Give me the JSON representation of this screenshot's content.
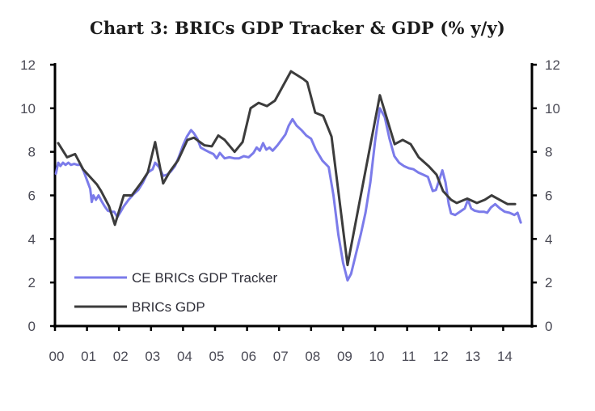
{
  "chart_data": {
    "type": "line",
    "title": "Chart 3: BRICs GDP Tracker & GDP (% y/y)",
    "xlabel": "",
    "ylabel": "",
    "xlim": [
      2000,
      2014.9
    ],
    "ylim": [
      0,
      12
    ],
    "y_ticks": [
      "0",
      "2",
      "4",
      "6",
      "8",
      "10",
      "12"
    ],
    "y_ticks_right": [
      "0",
      "2",
      "4",
      "6",
      "8",
      "10",
      "12"
    ],
    "x_ticks": [
      "00",
      "01",
      "02",
      "03",
      "04",
      "05",
      "06",
      "07",
      "08",
      "09",
      "10",
      "11",
      "12",
      "13",
      "14"
    ],
    "grid": false,
    "legend_position": "bottom-left",
    "series": [
      {
        "name": "CE BRICs GDP Tracker",
        "color": "#7b7bea",
        "x": [
          2000.03,
          2000.1,
          2000.17,
          2000.25,
          2000.33,
          2000.42,
          2000.5,
          2000.6,
          2000.7,
          2000.8,
          2000.9,
          2001.0,
          2001.1,
          2001.15,
          2001.2,
          2001.28,
          2001.36,
          2001.45,
          2001.55,
          2001.65,
          2001.75,
          2001.85,
          2001.95,
          2002.05,
          2002.15,
          2002.3,
          2002.45,
          2002.6,
          2002.75,
          2002.9,
          2003.05,
          2003.13,
          2003.25,
          2003.38,
          2003.5,
          2003.62,
          2003.75,
          2003.88,
          2004.0,
          2004.12,
          2004.25,
          2004.34,
          2004.45,
          2004.55,
          2004.67,
          2004.8,
          2004.95,
          2005.05,
          2005.15,
          2005.3,
          2005.45,
          2005.6,
          2005.75,
          2005.9,
          2006.05,
          2006.2,
          2006.3,
          2006.4,
          2006.5,
          2006.6,
          2006.7,
          2006.8,
          2006.95,
          2007.1,
          2007.2,
          2007.3,
          2007.42,
          2007.55,
          2007.7,
          2007.85,
          2008.0,
          2008.15,
          2008.35,
          2008.55,
          2008.7,
          2008.85,
          2009.0,
          2009.14,
          2009.25,
          2009.4,
          2009.55,
          2009.7,
          2009.85,
          2010.0,
          2010.15,
          2010.3,
          2010.45,
          2010.6,
          2010.75,
          2010.9,
          2011.05,
          2011.2,
          2011.35,
          2011.5,
          2011.65,
          2011.8,
          2011.9,
          2012.0,
          2012.1,
          2012.2,
          2012.3,
          2012.37,
          2012.5,
          2012.65,
          2012.8,
          2012.9,
          2013.0,
          2013.1,
          2013.25,
          2013.4,
          2013.5,
          2013.62,
          2013.75,
          2013.9,
          2014.05,
          2014.2,
          2014.35,
          2014.45,
          2014.55
        ],
        "values": [
          7.0,
          7.5,
          7.35,
          7.5,
          7.4,
          7.5,
          7.4,
          7.45,
          7.4,
          7.4,
          7.1,
          6.7,
          6.3,
          5.7,
          6.0,
          5.8,
          6.0,
          5.75,
          5.5,
          5.3,
          5.25,
          5.25,
          5.0,
          5.25,
          5.5,
          5.8,
          6.05,
          6.25,
          6.6,
          7.05,
          7.2,
          7.5,
          7.3,
          6.9,
          6.95,
          7.1,
          7.35,
          7.8,
          8.3,
          8.7,
          9.0,
          8.85,
          8.6,
          8.2,
          8.1,
          8.0,
          7.9,
          7.7,
          7.95,
          7.7,
          7.75,
          7.7,
          7.7,
          7.8,
          7.75,
          7.95,
          8.2,
          8.05,
          8.4,
          8.1,
          8.2,
          8.05,
          8.3,
          8.6,
          8.8,
          9.2,
          9.5,
          9.2,
          9.0,
          8.75,
          8.6,
          8.1,
          7.6,
          7.3,
          6.0,
          4.2,
          2.9,
          2.1,
          2.4,
          3.3,
          4.2,
          5.2,
          6.6,
          8.5,
          10.0,
          9.6,
          8.6,
          7.8,
          7.5,
          7.35,
          7.25,
          7.2,
          7.05,
          6.95,
          6.85,
          6.2,
          6.25,
          6.7,
          7.15,
          6.6,
          5.6,
          5.17,
          5.1,
          5.25,
          5.4,
          5.8,
          5.4,
          5.3,
          5.25,
          5.25,
          5.2,
          5.45,
          5.6,
          5.4,
          5.25,
          5.2,
          5.1,
          5.2,
          4.75
        ]
      },
      {
        "name": "BRICs GDP",
        "color": "#3c3c3c",
        "x": [
          2000.1,
          2000.38,
          2000.63,
          2000.88,
          2001.31,
          2001.44,
          2001.69,
          2001.87,
          2002.15,
          2002.4,
          2002.7,
          2002.9,
          2003.13,
          2003.38,
          2003.59,
          2003.84,
          2004.14,
          2004.34,
          2004.67,
          2004.9,
          2005.1,
          2005.3,
          2005.61,
          2005.86,
          2006.11,
          2006.36,
          2006.62,
          2006.87,
          2007.37,
          2007.75,
          2007.88,
          2008.13,
          2008.38,
          2008.64,
          2009.14,
          2010.15,
          2010.61,
          2010.86,
          2011.11,
          2011.36,
          2011.67,
          2011.92,
          2012.12,
          2012.37,
          2012.55,
          2012.88,
          2013.18,
          2013.43,
          2013.64,
          2013.89,
          2014.14,
          2014.37
        ],
        "values": [
          8.4,
          7.75,
          7.9,
          7.2,
          6.5,
          6.2,
          5.5,
          4.65,
          6.0,
          6.0,
          6.6,
          7.05,
          8.45,
          6.55,
          7.1,
          7.6,
          8.55,
          8.65,
          8.3,
          8.25,
          8.75,
          8.55,
          8.0,
          8.45,
          10.0,
          10.25,
          10.1,
          10.35,
          11.7,
          11.35,
          11.2,
          9.8,
          9.65,
          8.7,
          2.8,
          10.6,
          8.35,
          8.55,
          8.35,
          7.75,
          7.35,
          6.95,
          6.2,
          5.8,
          5.65,
          5.85,
          5.65,
          5.8,
          6.0,
          5.8,
          5.6,
          5.6
        ]
      }
    ]
  }
}
